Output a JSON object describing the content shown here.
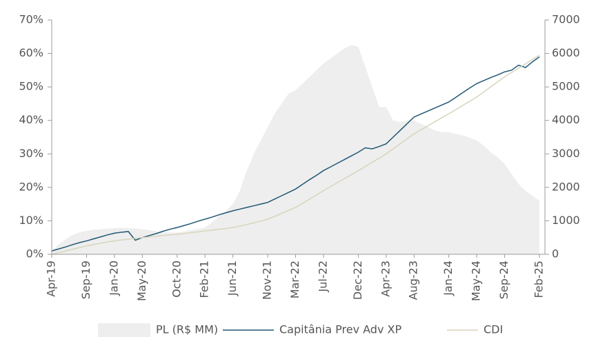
{
  "chart_data": {
    "type": "line",
    "categories": [
      "Apr-19",
      null,
      null,
      null,
      null,
      "Sep-19",
      null,
      null,
      null,
      "Jan-20",
      null,
      null,
      null,
      "May-20",
      null,
      null,
      null,
      null,
      "Oct-20",
      null,
      null,
      null,
      "Feb-21",
      null,
      null,
      null,
      "Jun-21",
      null,
      null,
      null,
      null,
      "Nov-21",
      null,
      null,
      null,
      "Mar-22",
      null,
      null,
      null,
      "Jul-22",
      null,
      null,
      null,
      null,
      "Dec-22",
      null,
      null,
      null,
      "Apr-23",
      null,
      null,
      null,
      "Aug-23",
      null,
      null,
      null,
      null,
      "Jan-24",
      null,
      null,
      null,
      "May-24",
      null,
      null,
      null,
      "Sep-24",
      null,
      null,
      null,
      null,
      "Feb-25"
    ],
    "series": [
      {
        "name": "PL (R$ MM)",
        "type": "area",
        "axis": "y2",
        "color": "#eeeeee",
        "values": [
          100,
          300,
          450,
          580,
          660,
          700,
          730,
          750,
          770,
          780,
          790,
          780,
          770,
          750,
          720,
          690,
          660,
          650,
          650,
          680,
          720,
          760,
          800,
          950,
          1150,
          1300,
          1500,
          1900,
          2500,
          3000,
          3400,
          3800,
          4200,
          4500,
          4800,
          4900,
          5100,
          5300,
          5500,
          5700,
          5850,
          6000,
          6150,
          6250,
          6200,
          5600,
          5000,
          4400,
          4400,
          4000,
          3950,
          4000,
          4000,
          3900,
          3800,
          3700,
          3650,
          3650,
          3600,
          3550,
          3480,
          3400,
          3250,
          3050,
          2900,
          2700,
          2400,
          2100,
          1900,
          1750,
          1600
        ]
      },
      {
        "name": "Capitânia Prev Adv XP",
        "type": "line",
        "color": "#1f5673",
        "values": [
          1.0,
          1.6,
          2.2,
          2.9,
          3.5,
          4.0,
          4.6,
          5.2,
          5.8,
          6.3,
          6.6,
          6.8,
          4.2,
          5.0,
          5.6,
          6.2,
          6.9,
          7.5,
          8.0,
          8.6,
          9.2,
          9.9,
          10.5,
          11.1,
          11.8,
          12.4,
          13.0,
          13.5,
          14.0,
          14.5,
          15.0,
          15.5,
          16.5,
          17.5,
          18.5,
          19.5,
          20.9,
          22.3,
          23.6,
          25.0,
          26.1,
          27.2,
          28.3,
          29.4,
          30.5,
          31.8,
          31.5,
          32.2,
          33.0,
          35.0,
          37.0,
          39.0,
          41.0,
          41.9,
          42.8,
          43.7,
          44.6,
          45.5,
          46.9,
          48.3,
          49.7,
          51.0,
          51.9,
          52.8,
          53.6,
          54.5,
          55.0,
          56.5,
          55.8,
          57.5,
          59.0
        ]
      },
      {
        "name": "CDI",
        "type": "line",
        "color": "#d8d4bd",
        "values": [
          0.0,
          0.5,
          1.0,
          1.5,
          2.0,
          2.5,
          2.9,
          3.3,
          3.7,
          4.0,
          4.3,
          4.5,
          4.8,
          5.0,
          5.2,
          5.4,
          5.6,
          5.8,
          6.0,
          6.2,
          6.5,
          6.7,
          7.0,
          7.2,
          7.5,
          7.7,
          8.0,
          8.4,
          8.9,
          9.4,
          9.9,
          10.5,
          11.3,
          12.2,
          13.1,
          14.0,
          15.2,
          16.5,
          17.7,
          19.0,
          20.2,
          21.4,
          22.6,
          23.8,
          25.0,
          26.2,
          27.5,
          28.7,
          30.0,
          31.5,
          33.0,
          34.5,
          36.0,
          37.2,
          38.4,
          39.6,
          40.8,
          42.0,
          43.2,
          44.5,
          45.7,
          47.0,
          48.5,
          50.0,
          51.5,
          53.0,
          54.3,
          55.6,
          56.9,
          58.2,
          59.5
        ]
      }
    ],
    "ylim": [
      0,
      70
    ],
    "yticks": [
      {
        "value": 0,
        "label": "0%"
      },
      {
        "value": 10,
        "label": "10%"
      },
      {
        "value": 20,
        "label": "20%"
      },
      {
        "value": 30,
        "label": "30%"
      },
      {
        "value": 40,
        "label": "40%"
      },
      {
        "value": 50,
        "label": "50%"
      },
      {
        "value": 60,
        "label": "60%"
      },
      {
        "value": 70,
        "label": "70%"
      }
    ],
    "y2lim": [
      0,
      7000
    ],
    "y2ticks": [
      0,
      1000,
      2000,
      3000,
      4000,
      5000,
      6000,
      7000
    ],
    "legend": "bottom"
  }
}
